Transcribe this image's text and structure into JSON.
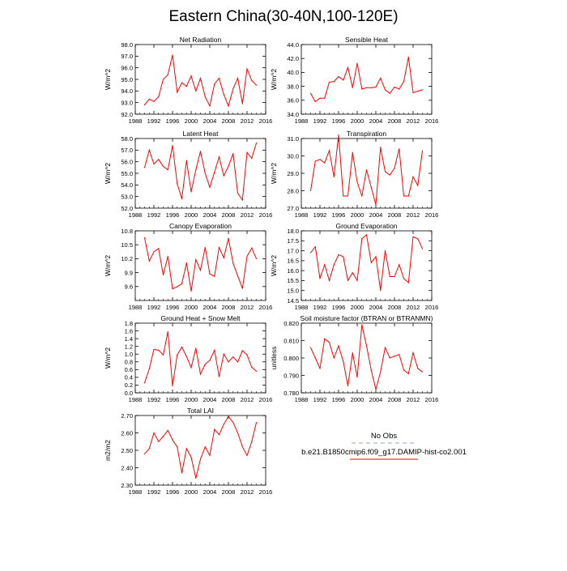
{
  "title": "Eastern China(30-40N,100-120E)",
  "line_color": "#ff0000",
  "legend": {
    "items": [
      {
        "label": "No Obs",
        "color": "#9aa0c8",
        "style": "dashed"
      },
      {
        "label": "b.e21.B1850cmip6.f09_g17.DAMIP-hist-co2.001",
        "color": "#ff0000",
        "style": "solid"
      }
    ]
  },
  "chart_data": [
    {
      "type": "line",
      "title": "Net Radiation",
      "ylabel": "W/m^2",
      "xlim": [
        1988,
        2016
      ],
      "ylim": [
        92.0,
        98.0
      ],
      "xticks": [
        "1988",
        "1992",
        "1996",
        "2000",
        "2004",
        "2008",
        "2012",
        "2016"
      ],
      "yticks": [
        "92.0",
        "93.0",
        "94.0",
        "95.0",
        "96.0",
        "97.0",
        "98.0"
      ],
      "x": [
        1990,
        1991,
        1992,
        1993,
        1994,
        1995,
        1996,
        1997,
        1998,
        1999,
        2000,
        2001,
        2002,
        2003,
        2004,
        2005,
        2006,
        2007,
        2008,
        2009,
        2010,
        2011,
        2012,
        2013,
        2014
      ],
      "series": [
        {
          "values": [
            92.8,
            93.3,
            93.1,
            93.5,
            95.0,
            95.4,
            97.1,
            93.9,
            94.7,
            94.4,
            95.3,
            94.0,
            95.1,
            93.5,
            92.7,
            94.6,
            95.1,
            93.7,
            92.7,
            94.2,
            95.1,
            92.9,
            95.9,
            94.9,
            94.5
          ]
        }
      ]
    },
    {
      "type": "line",
      "title": "Sensible Heat",
      "ylabel": "W/m^2",
      "xlim": [
        1988,
        2016
      ],
      "ylim": [
        34.0,
        44.0
      ],
      "xticks": [
        "1988",
        "1992",
        "1996",
        "2000",
        "2004",
        "2008",
        "2012",
        "2016"
      ],
      "yticks": [
        "34.0",
        "36.0",
        "38.0",
        "40.0",
        "42.0",
        "44.0"
      ],
      "x": [
        1990,
        1991,
        1992,
        1993,
        1994,
        1995,
        1996,
        1997,
        1998,
        1999,
        2000,
        2001,
        2002,
        2003,
        2004,
        2005,
        2006,
        2007,
        2008,
        2009,
        2010,
        2011,
        2012,
        2013,
        2014
      ],
      "series": [
        {
          "values": [
            37.0,
            35.8,
            36.3,
            36.3,
            38.6,
            38.7,
            39.4,
            38.9,
            40.7,
            37.8,
            41.3,
            37.6,
            37.8,
            37.8,
            37.9,
            39.2,
            37.5,
            37.0,
            37.9,
            37.6,
            38.7,
            42.2,
            37.1,
            37.3,
            37.5
          ]
        }
      ]
    },
    {
      "type": "line",
      "title": "Latent Heat",
      "ylabel": "W/m^2",
      "xlim": [
        1988,
        2016
      ],
      "ylim": [
        52.0,
        58.0
      ],
      "xticks": [
        "1988",
        "1992",
        "1996",
        "2000",
        "2004",
        "2008",
        "2012",
        "2016"
      ],
      "yticks": [
        "52.0",
        "53.0",
        "54.0",
        "55.0",
        "56.0",
        "57.0",
        "58.0"
      ],
      "x": [
        1990,
        1991,
        1992,
        1993,
        1994,
        1995,
        1996,
        1997,
        1998,
        1999,
        2000,
        2001,
        2002,
        2003,
        2004,
        2005,
        2006,
        2007,
        2008,
        2009,
        2010,
        2011,
        2012,
        2013,
        2014
      ],
      "series": [
        {
          "values": [
            55.5,
            57.0,
            55.8,
            56.2,
            55.6,
            55.3,
            57.4,
            54.1,
            52.8,
            56.1,
            53.4,
            55.3,
            56.9,
            55.0,
            53.8,
            55.1,
            56.4,
            54.8,
            55.6,
            56.7,
            53.3,
            52.7,
            56.8,
            56.3,
            57.6
          ]
        }
      ]
    },
    {
      "type": "line",
      "title": "Transpiration",
      "ylabel": "W/m^2",
      "xlim": [
        1988,
        2016
      ],
      "ylim": [
        27.0,
        31.0
      ],
      "xticks": [
        "1988",
        "1992",
        "1996",
        "2000",
        "2004",
        "2008",
        "2012",
        "2016"
      ],
      "yticks": [
        "27.0",
        "28.0",
        "29.0",
        "30.0",
        "31.0"
      ],
      "x": [
        1990,
        1991,
        1992,
        1993,
        1994,
        1995,
        1996,
        1997,
        1998,
        1999,
        2000,
        2001,
        2002,
        2003,
        2004,
        2005,
        2006,
        2007,
        2008,
        2009,
        2010,
        2011,
        2012,
        2013,
        2014
      ],
      "series": [
        {
          "values": [
            28.0,
            29.7,
            29.8,
            29.6,
            30.3,
            28.8,
            31.2,
            27.7,
            27.7,
            30.2,
            28.5,
            27.7,
            29.2,
            28.2,
            27.2,
            30.5,
            29.1,
            28.9,
            29.3,
            30.4,
            27.7,
            27.7,
            28.8,
            28.3,
            30.3
          ]
        }
      ]
    },
    {
      "type": "line",
      "title": "Canopy Evaporation",
      "ylabel": "W/m^2",
      "xlim": [
        1988,
        2016
      ],
      "ylim": [
        9.3,
        10.8
      ],
      "xticks": [
        "1988",
        "1992",
        "1996",
        "2000",
        "2004",
        "2008",
        "2012",
        "2016"
      ],
      "yticks": [
        "9.6",
        "9.9",
        "10.2",
        "10.5",
        "10.8"
      ],
      "x": [
        1990,
        1991,
        1992,
        1993,
        1994,
        1995,
        1996,
        1997,
        1998,
        1999,
        2000,
        2001,
        2002,
        2003,
        2004,
        2005,
        2006,
        2007,
        2008,
        2009,
        2010,
        2011,
        2012,
        2013,
        2014
      ],
      "series": [
        {
          "values": [
            10.65,
            10.15,
            10.35,
            10.42,
            9.85,
            10.25,
            9.55,
            9.6,
            9.66,
            10.11,
            9.5,
            10.18,
            9.95,
            10.44,
            9.87,
            9.82,
            10.44,
            10.22,
            10.64,
            10.1,
            9.83,
            9.56,
            10.25,
            10.43,
            10.2
          ]
        }
      ]
    },
    {
      "type": "line",
      "title": "Ground Evaporation",
      "ylabel": "W/m^2",
      "xlim": [
        1988,
        2016
      ],
      "ylim": [
        14.5,
        18.0
      ],
      "xticks": [
        "1988",
        "1992",
        "1996",
        "2000",
        "2004",
        "2008",
        "2012",
        "2016"
      ],
      "yticks": [
        "14.5",
        "15.0",
        "15.5",
        "16.0",
        "16.5",
        "17.0",
        "17.5",
        "18.0"
      ],
      "x": [
        1990,
        1991,
        1992,
        1993,
        1994,
        1995,
        1996,
        1997,
        1998,
        1999,
        2000,
        2001,
        2002,
        2003,
        2004,
        2005,
        2006,
        2007,
        2008,
        2009,
        2010,
        2011,
        2012,
        2013,
        2014
      ],
      "series": [
        {
          "values": [
            16.9,
            17.2,
            15.6,
            16.3,
            15.5,
            16.3,
            16.8,
            16.7,
            15.5,
            15.9,
            15.5,
            17.6,
            17.8,
            16.4,
            16.7,
            15.0,
            17.0,
            15.7,
            15.7,
            16.3,
            15.6,
            15.4,
            17.7,
            17.6,
            17.1
          ]
        }
      ]
    },
    {
      "type": "line",
      "title": "Ground Heat + Snow Melt",
      "ylabel": "W/m^2",
      "xlim": [
        1988,
        2016
      ],
      "ylim": [
        0.0,
        1.8
      ],
      "xticks": [
        "1988",
        "1992",
        "1996",
        "2000",
        "2004",
        "2008",
        "2012",
        "2016"
      ],
      "yticks": [
        "0.0",
        "0.2",
        "0.4",
        "0.6",
        "0.8",
        "1.0",
        "1.2",
        "1.4",
        "1.6",
        "1.8"
      ],
      "x": [
        1990,
        1991,
        1992,
        1993,
        1994,
        1995,
        1996,
        1997,
        1998,
        1999,
        2000,
        2001,
        2002,
        2003,
        2004,
        2005,
        2006,
        2007,
        2008,
        2009,
        2010,
        2011,
        2012,
        2013,
        2014
      ],
      "series": [
        {
          "values": [
            0.26,
            0.62,
            1.12,
            1.1,
            0.98,
            1.58,
            0.18,
            0.98,
            1.18,
            0.94,
            0.65,
            1.15,
            0.48,
            0.74,
            0.84,
            1.1,
            0.42,
            1.0,
            0.8,
            0.93,
            0.8,
            1.09,
            0.98,
            0.66,
            0.56
          ]
        }
      ]
    },
    {
      "type": "line",
      "title": "Soil moisture factor (BTRAN or BTRANMN)",
      "ylabel": "unitless",
      "xlim": [
        1988,
        2016
      ],
      "ylim": [
        0.78,
        0.82
      ],
      "xticks": [
        "1988",
        "1992",
        "1996",
        "2000",
        "2004",
        "2008",
        "2012",
        "2016"
      ],
      "yticks": [
        "0.780",
        "0.790",
        "0.800",
        "0.810",
        "0.820"
      ],
      "x": [
        1990,
        1991,
        1992,
        1993,
        1994,
        1995,
        1996,
        1997,
        1998,
        1999,
        2000,
        2001,
        2002,
        2003,
        2004,
        2005,
        2006,
        2007,
        2008,
        2009,
        2010,
        2011,
        2012,
        2013,
        2014
      ],
      "series": [
        {
          "values": [
            0.806,
            0.8,
            0.794,
            0.811,
            0.809,
            0.8,
            0.807,
            0.798,
            0.784,
            0.803,
            0.789,
            0.819,
            0.807,
            0.793,
            0.782,
            0.792,
            0.806,
            0.8,
            0.801,
            0.802,
            0.793,
            0.791,
            0.803,
            0.794,
            0.792
          ]
        }
      ]
    },
    {
      "type": "line",
      "title": "Total LAI",
      "ylabel": "m2/m2",
      "xlim": [
        1988,
        2016
      ],
      "ylim": [
        2.3,
        2.7
      ],
      "xticks": [
        "1988",
        "1992",
        "1996",
        "2000",
        "2004",
        "2008",
        "2012",
        "2016"
      ],
      "yticks": [
        "2.30",
        "2.40",
        "2.50",
        "2.60",
        "2.70"
      ],
      "x": [
        1990,
        1991,
        1992,
        1993,
        1994,
        1995,
        1996,
        1997,
        1998,
        1999,
        2000,
        2001,
        2002,
        2003,
        2004,
        2005,
        2006,
        2007,
        2008,
        2009,
        2010,
        2011,
        2012,
        2013,
        2014
      ],
      "series": [
        {
          "values": [
            2.48,
            2.51,
            2.6,
            2.55,
            2.58,
            2.615,
            2.56,
            2.52,
            2.37,
            2.51,
            2.46,
            2.34,
            2.45,
            2.52,
            2.47,
            2.62,
            2.59,
            2.65,
            2.695,
            2.66,
            2.6,
            2.52,
            2.47,
            2.55,
            2.66
          ]
        }
      ]
    }
  ]
}
